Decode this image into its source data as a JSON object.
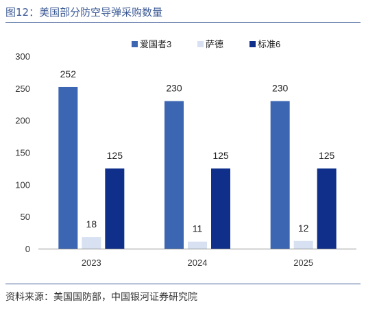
{
  "figure": {
    "title": "图12：美国部分防空导弹采购数量",
    "source": "资料来源：美国国防部，中国银河证券研究院"
  },
  "colors": {
    "header_accent": "#3a5894",
    "axis": "#888888",
    "tick_text": "#333333"
  },
  "chart_data": {
    "type": "bar",
    "title": "",
    "xlabel": "",
    "ylabel": "",
    "categories": [
      "2023",
      "2024",
      "2025"
    ],
    "series": [
      {
        "name": "爱国者3",
        "values": [
          252,
          230,
          230
        ],
        "color": "#3c66b1"
      },
      {
        "name": "萨德",
        "values": [
          18,
          11,
          12
        ],
        "color": "#d7e1f2"
      },
      {
        "name": "标准6",
        "values": [
          125,
          125,
          125
        ],
        "color": "#0f2f8a"
      }
    ],
    "ylim": [
      0,
      300
    ],
    "yticks": [
      0,
      50,
      100,
      150,
      200,
      250,
      300
    ],
    "grid": false,
    "legend_position": "top-right",
    "data_labels": true
  }
}
